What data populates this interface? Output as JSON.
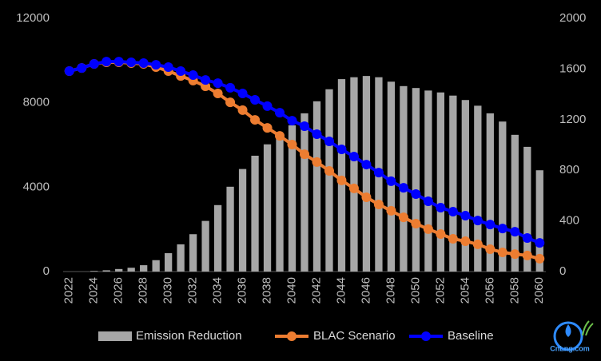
{
  "chart_data": {
    "type": "bar_line",
    "categories": [
      "2022",
      null,
      "2024",
      null,
      "2026",
      null,
      "2028",
      null,
      "2030",
      null,
      "2032",
      null,
      "2034",
      null,
      "2036",
      null,
      "2038",
      null,
      "2040",
      null,
      "2042",
      null,
      "2044",
      null,
      "2046",
      null,
      "2048",
      null,
      "2050",
      null,
      "2052",
      null,
      "2054",
      null,
      "2056",
      null,
      "2058",
      null,
      "2060"
    ],
    "series": [
      {
        "name": "Emission Reduction",
        "type": "bar",
        "axis": "y2",
        "color": "#a6a6a6",
        "values": [
          0,
          0,
          5,
          10,
          20,
          30,
          50,
          90,
          145,
          215,
          295,
          400,
          525,
          670,
          810,
          915,
          1005,
          1085,
          1155,
          1250,
          1345,
          1440,
          1520,
          1535,
          1545,
          1535,
          1500,
          1465,
          1450,
          1430,
          1415,
          1390,
          1355,
          1310,
          1250,
          1185,
          1080,
          985,
          800
        ]
      },
      {
        "name": "BLAC Scenario",
        "type": "line",
        "color": "#ed7d31",
        "values": [
          9500,
          9650,
          9840,
          9920,
          9920,
          9880,
          9840,
          9690,
          9500,
          9270,
          9050,
          8780,
          8440,
          8020,
          7650,
          7190,
          6810,
          6430,
          6020,
          5560,
          5190,
          4770,
          4320,
          3940,
          3520,
          3180,
          2880,
          2570,
          2270,
          2010,
          1780,
          1550,
          1440,
          1290,
          1060,
          910,
          830,
          760,
          610
        ]
      },
      {
        "name": "Baseline",
        "type": "line",
        "color": "#0000ff",
        "values": [
          9500,
          9650,
          9840,
          9950,
          9950,
          9920,
          9880,
          9800,
          9690,
          9500,
          9310,
          9080,
          8930,
          8710,
          8440,
          8140,
          7840,
          7530,
          7150,
          6890,
          6510,
          6170,
          5790,
          5450,
          5070,
          4690,
          4280,
          3970,
          3670,
          3330,
          3030,
          2840,
          2650,
          2420,
          2230,
          2040,
          1890,
          1590,
          1360
        ]
      }
    ],
    "ylim": [
      0,
      12000
    ],
    "yticks": [
      0,
      4000,
      8000,
      12000
    ],
    "y2lim": [
      0,
      2000
    ],
    "y2ticks": [
      0,
      400,
      800,
      1200,
      1600,
      2000
    ],
    "grid": false,
    "legend": "bottom",
    "watermark": "CnLng.com"
  }
}
